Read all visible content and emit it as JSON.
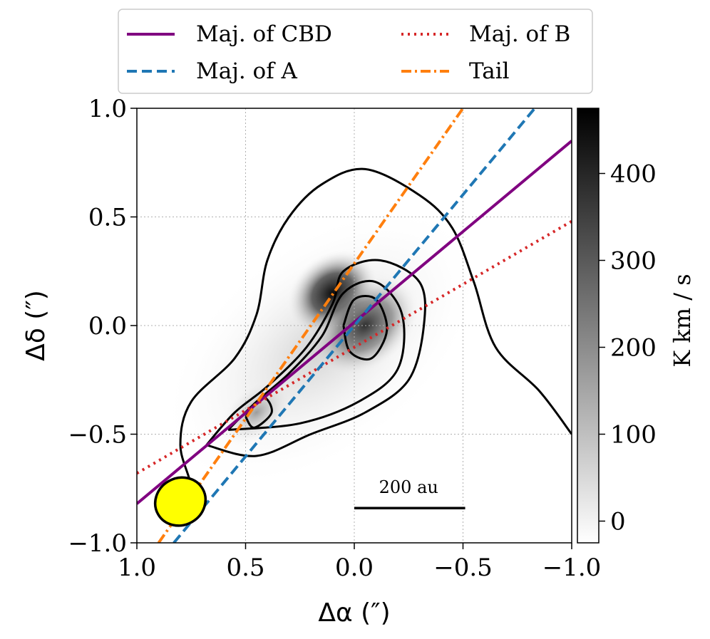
{
  "chart_data": {
    "type": "line",
    "title": "",
    "xlabel": "Δα (″)",
    "ylabel": "Δδ (″)",
    "xlim": [
      1.0,
      -1.0
    ],
    "ylim": [
      -1.0,
      1.0
    ],
    "x_ticks": [
      1.0,
      0.5,
      0.0,
      -0.5,
      -1.0
    ],
    "y_ticks": [
      1.0,
      0.5,
      0.0,
      -0.5,
      -1.0
    ],
    "x_tick_labels": [
      "1.0",
      "0.5",
      "0.0",
      "−0.5",
      "−1.0"
    ],
    "y_tick_labels": [
      "1.0",
      "0.5",
      "0.0",
      "−0.5",
      "−1.0"
    ],
    "grid": true,
    "legend_position": "top",
    "legend": [
      {
        "label": "Maj. of CBD",
        "color": "#800080",
        "style": "solid"
      },
      {
        "label": "Maj. of B",
        "color": "#d62728",
        "style": "dotted"
      },
      {
        "label": "Maj. of A",
        "color": "#1f77b4",
        "style": "dashed"
      },
      {
        "label": "Tail",
        "color": "#ff7f0e",
        "style": "dashdot"
      }
    ],
    "series": [
      {
        "name": "Maj. of CBD",
        "x": [
          1.0,
          -1.0
        ],
        "y": [
          -0.82,
          0.85
        ]
      },
      {
        "name": "Maj. of B",
        "x": [
          1.0,
          -1.0
        ],
        "y": [
          -0.68,
          0.48
        ]
      },
      {
        "name": "Maj. of A",
        "x": [
          0.83,
          -0.83
        ],
        "y": [
          -1.0,
          1.0
        ]
      },
      {
        "name": "Tail",
        "x": [
          0.9,
          -0.5
        ],
        "y": [
          -1.0,
          1.0
        ]
      }
    ],
    "colorbar": {
      "label": "K km / s",
      "range": [
        -25,
        475
      ],
      "ticks": [
        0,
        100,
        200,
        300,
        400
      ],
      "tick_labels": [
        "0",
        "100",
        "200",
        "300",
        "400"
      ]
    },
    "image_peaks": [
      {
        "x": 0.1,
        "y": 0.15,
        "value": 470
      },
      {
        "x": -0.05,
        "y": 0.0,
        "value": 430
      },
      {
        "x": 0.45,
        "y": -0.4,
        "value": 180
      }
    ],
    "contours": [
      {
        "level": 1,
        "points": [
          [
            0.78,
            -0.9
          ],
          [
            0.75,
            -0.75
          ],
          [
            0.8,
            -0.55
          ],
          [
            0.75,
            -0.35
          ],
          [
            0.55,
            -0.15
          ],
          [
            0.45,
            0.05
          ],
          [
            0.4,
            0.3
          ],
          [
            0.3,
            0.5
          ],
          [
            0.15,
            0.65
          ],
          [
            -0.05,
            0.72
          ],
          [
            -0.3,
            0.6
          ],
          [
            -0.45,
            0.45
          ],
          [
            -0.55,
            0.2
          ],
          [
            -0.65,
            -0.1
          ],
          [
            -0.85,
            -0.3
          ],
          [
            -1.0,
            -0.5
          ]
        ]
      },
      {
        "level": 2,
        "points": [
          [
            0.68,
            -0.55
          ],
          [
            0.55,
            -0.4
          ],
          [
            0.4,
            -0.28
          ],
          [
            0.22,
            -0.1
          ],
          [
            0.1,
            0.1
          ],
          [
            0.05,
            0.25
          ],
          [
            -0.12,
            0.3
          ],
          [
            -0.3,
            0.2
          ],
          [
            -0.32,
            0.0
          ],
          [
            -0.25,
            -0.25
          ],
          [
            -0.05,
            -0.4
          ],
          [
            0.2,
            -0.5
          ],
          [
            0.45,
            -0.6
          ],
          [
            0.68,
            -0.55
          ]
        ]
      },
      {
        "level": 3,
        "points": [
          [
            0.58,
            -0.48
          ],
          [
            0.45,
            -0.35
          ],
          [
            0.3,
            -0.22
          ],
          [
            0.15,
            -0.05
          ],
          [
            0.05,
            0.15
          ],
          [
            -0.1,
            0.2
          ],
          [
            -0.22,
            0.05
          ],
          [
            -0.2,
            -0.2
          ],
          [
            -0.02,
            -0.35
          ],
          [
            0.25,
            -0.45
          ],
          [
            0.58,
            -0.48
          ]
        ]
      },
      {
        "level": 4,
        "points": [
          [
            0.05,
            0.0
          ],
          [
            0.0,
            0.12
          ],
          [
            -0.1,
            0.12
          ],
          [
            -0.15,
            -0.02
          ],
          [
            -0.08,
            -0.15
          ],
          [
            0.02,
            -0.12
          ],
          [
            0.05,
            0.0
          ]
        ]
      },
      {
        "level": 4,
        "points": [
          [
            0.5,
            -0.42
          ],
          [
            0.42,
            -0.33
          ],
          [
            0.38,
            -0.4
          ],
          [
            0.46,
            -0.47
          ],
          [
            0.5,
            -0.42
          ]
        ]
      }
    ],
    "annotations": [
      {
        "text": "200 au",
        "x": -0.25,
        "y": -0.77
      }
    ],
    "beam": {
      "label": "beam",
      "x": 0.8,
      "y": -0.81,
      "color": "#ffff00"
    }
  }
}
